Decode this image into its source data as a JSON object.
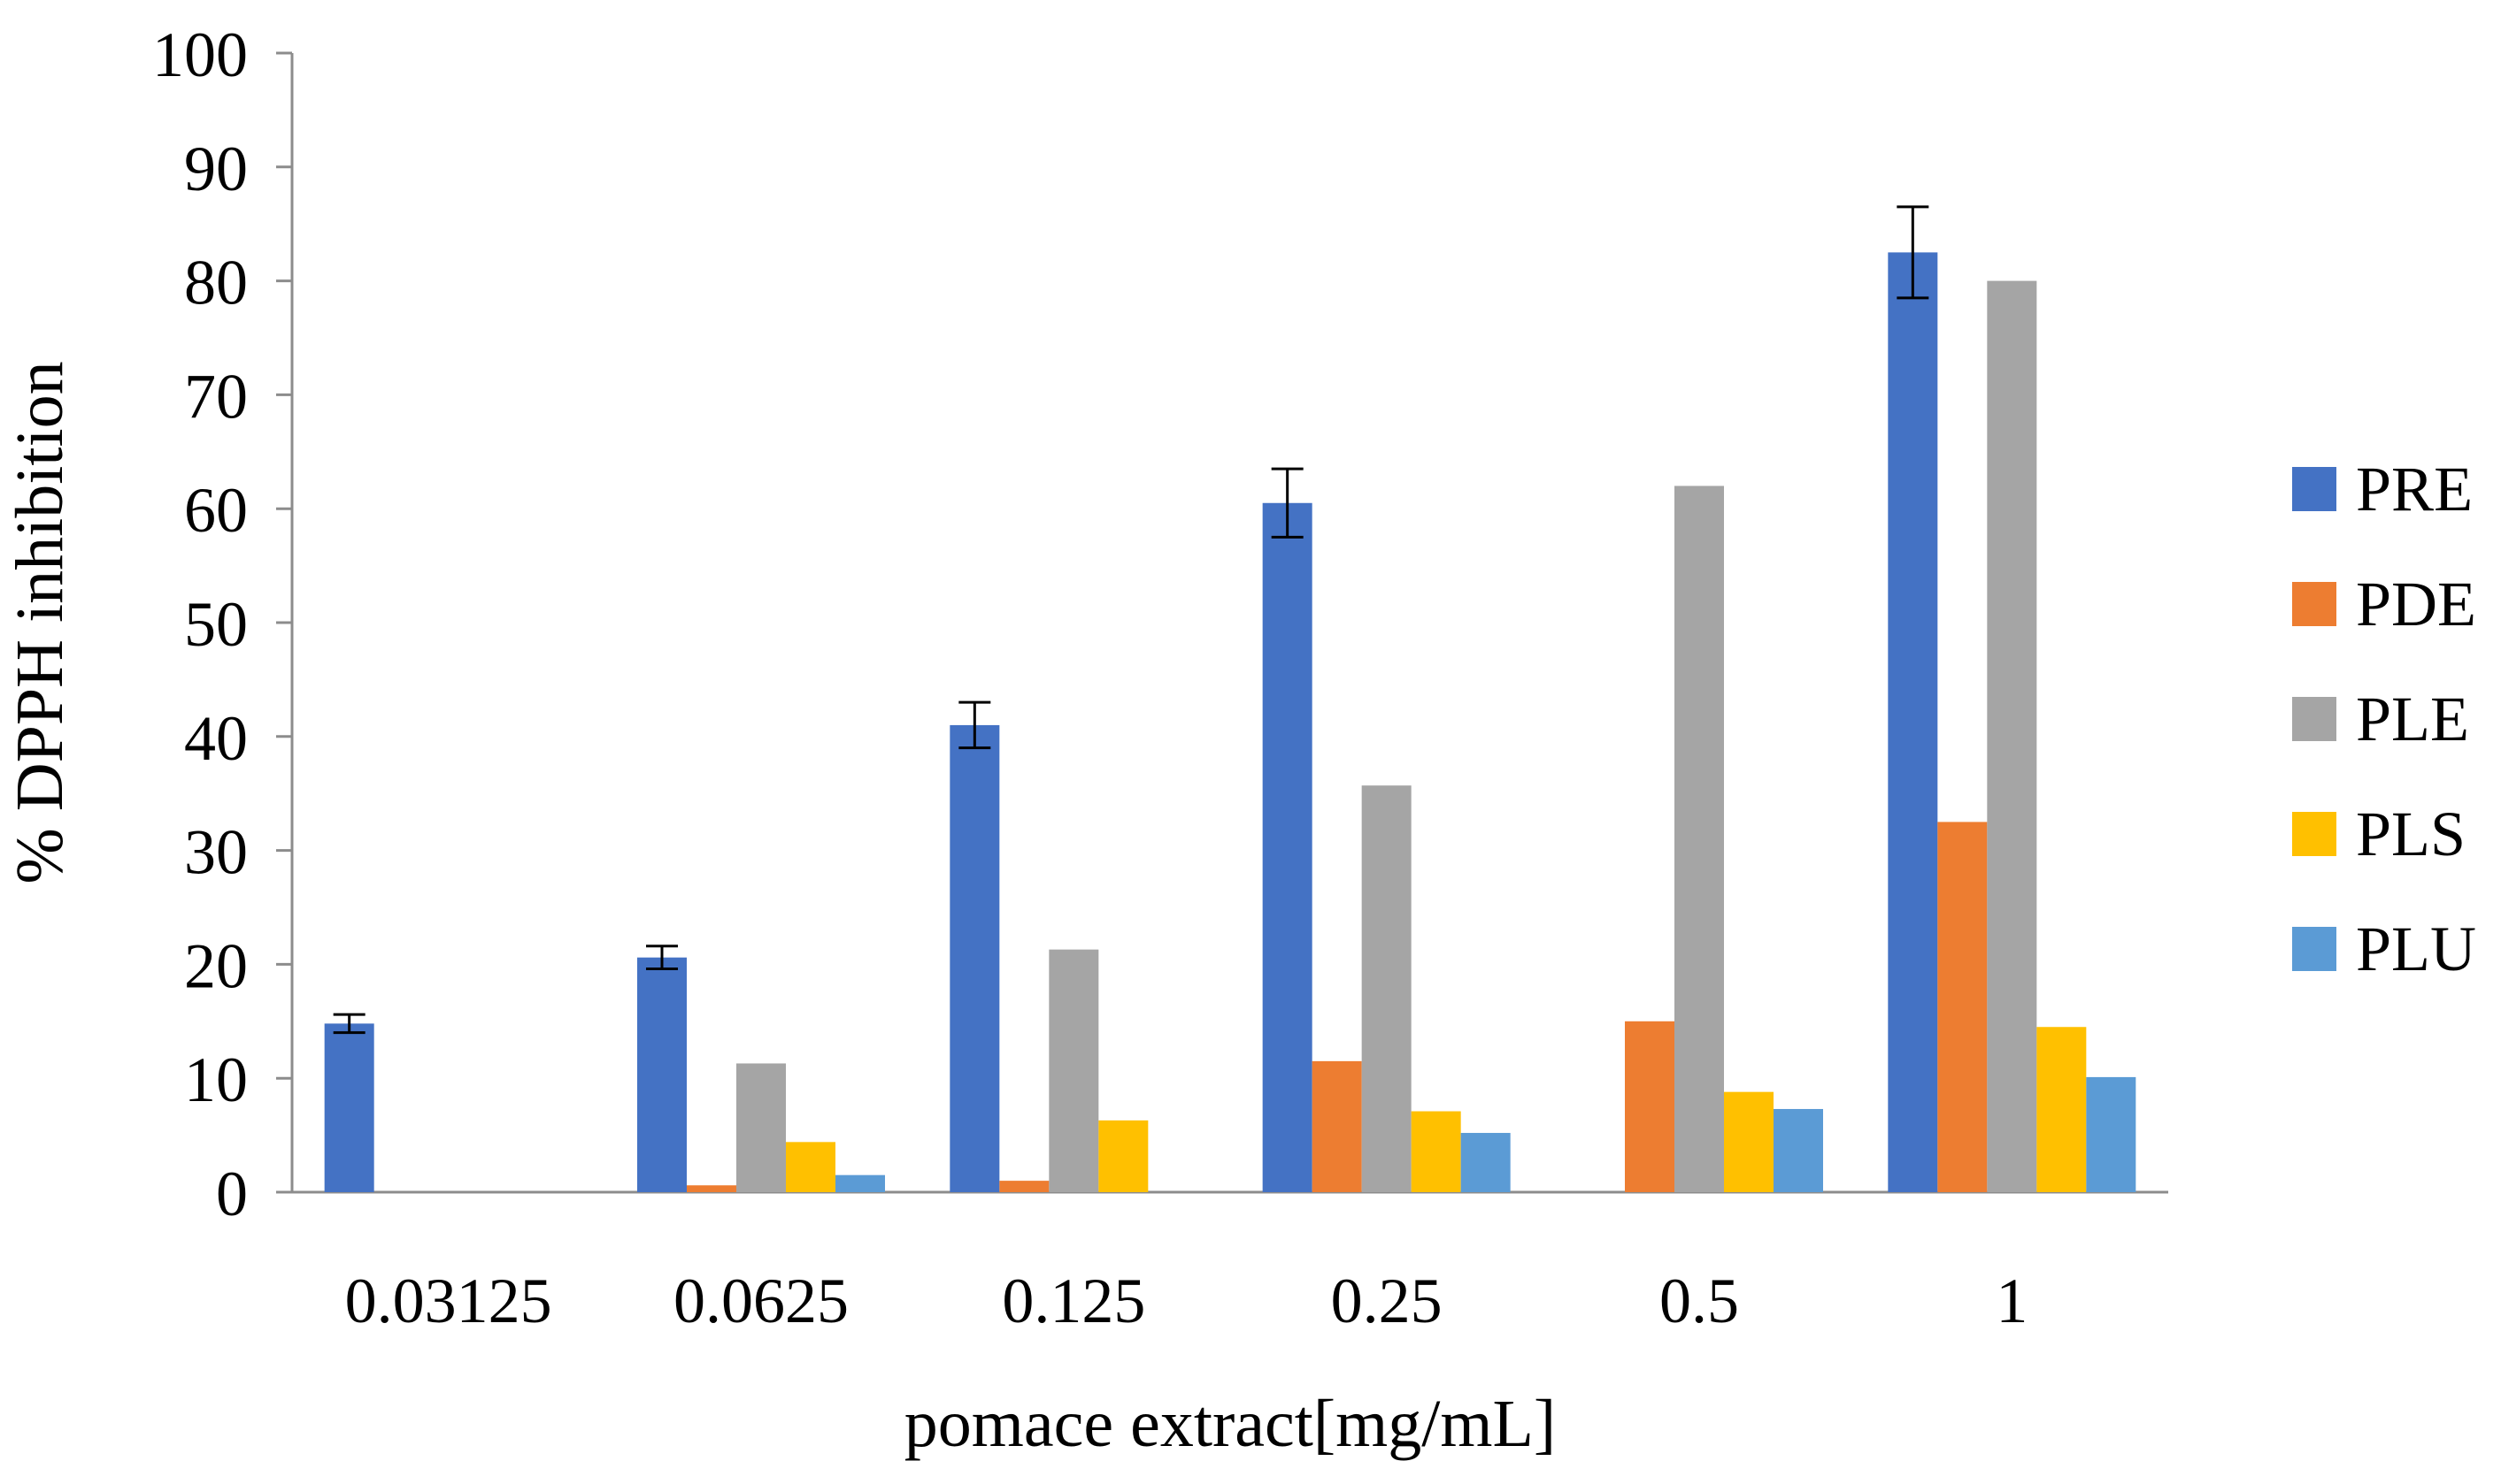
{
  "chart_data": {
    "type": "bar",
    "title": "",
    "xlabel": "pomace extract[mg/mL]",
    "ylabel": "% DPPH inhibition",
    "ylim": [
      0,
      100
    ],
    "yticks": [
      0,
      10,
      20,
      30,
      40,
      50,
      60,
      70,
      80,
      90,
      100
    ],
    "categories": [
      "0.03125",
      "0.0625",
      "0.125",
      "0.25",
      "0.5",
      "1"
    ],
    "legend_position": "right",
    "series": [
      {
        "name": "PRE",
        "color": "#4472C4",
        "values": [
          14.8,
          20.6,
          41.0,
          60.5,
          0,
          82.5
        ],
        "errors": [
          0.8,
          1.0,
          2.0,
          3.0,
          null,
          4.0
        ]
      },
      {
        "name": "PDE",
        "color": "#ED7D31",
        "values": [
          0,
          0.6,
          1.0,
          11.5,
          15.0,
          32.5
        ]
      },
      {
        "name": "PLE",
        "color": "#A5A5A5",
        "values": [
          0,
          11.3,
          21.3,
          35.7,
          62.0,
          80.0
        ]
      },
      {
        "name": "PLS",
        "color": "#FFC000",
        "values": [
          0,
          4.4,
          6.3,
          7.1,
          8.8,
          14.5
        ]
      },
      {
        "name": "PLU",
        "color": "#5B9BD5",
        "values": [
          0,
          1.5,
          0,
          5.2,
          7.3,
          10.1
        ]
      }
    ]
  }
}
